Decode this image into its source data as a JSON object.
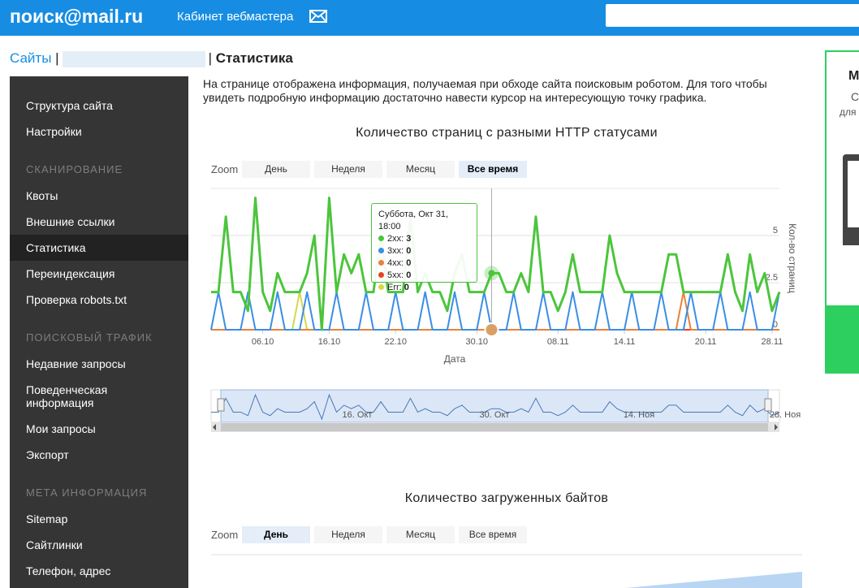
{
  "header": {
    "logo": "поиск@mail.ru",
    "cabinet": "Кабинет вебмастера"
  },
  "breadcrumb": {
    "sites": "Сайты",
    "separator": "|",
    "current": "Статистика"
  },
  "sidebar": {
    "sections": [
      {
        "items": [
          {
            "label": "Структура сайта"
          },
          {
            "label": "Настройки"
          }
        ]
      },
      {
        "heading": "СКАНИРОВАНИЕ",
        "items": [
          {
            "label": "Квоты"
          },
          {
            "label": "Внешние ссылки"
          },
          {
            "label": "Статистика",
            "selected": true
          },
          {
            "label": "Переиндексация"
          },
          {
            "label": "Проверка robots.txt"
          }
        ]
      },
      {
        "heading": "ПОИСКОВЫЙ ТРАФИК",
        "items": [
          {
            "label": "Недавние запросы"
          },
          {
            "label": "Поведенческая информация"
          },
          {
            "label": "Мои запросы"
          },
          {
            "label": "Экспорт"
          }
        ]
      },
      {
        "heading": "МЕТА ИНФОРМАЦИЯ",
        "items": [
          {
            "label": "Sitemap"
          },
          {
            "label": "Сайтлинки"
          },
          {
            "label": "Телефон, адрес"
          }
        ]
      }
    ]
  },
  "intro": "На странице отображена информация, получаемая при обходе сайта поисковым роботом. Для того чтобы увидеть подробную информацию достаточно навести курсор на интересующую точку графика.",
  "chart_data": {
    "type": "line",
    "title": "Количество страниц с разными HTTP статусами",
    "zoom_label": "Zoom",
    "zoom_buttons": [
      "День",
      "Неделя",
      "Месяц",
      "Все время"
    ],
    "zoom_selected": 3,
    "xlabel": "Дата",
    "ylabel": "Кол-во страниц",
    "ylim": [
      0,
      7.5
    ],
    "yticks": [
      0,
      2.5,
      5
    ],
    "grid": true,
    "xlim": [
      0,
      77
    ],
    "xticks": [
      {
        "value": 7,
        "label": "06.10"
      },
      {
        "value": 16,
        "label": "16.10"
      },
      {
        "value": 25,
        "label": "22.10"
      },
      {
        "value": 36,
        "label": "30.10"
      },
      {
        "value": 47,
        "label": "08.11"
      },
      {
        "value": 56,
        "label": "14.11"
      },
      {
        "value": 67,
        "label": "20.11"
      },
      {
        "value": 76,
        "label": "28.11"
      }
    ],
    "tooltip_title": "Суббота, Окт 31, 18:00",
    "navigator_labels": [
      "16. Окт",
      "30. Окт",
      "14. Ноя",
      "28. Ноя"
    ],
    "series": [
      {
        "name": "2xx",
        "color": "#4cc53c",
        "values": [
          2,
          2,
          6,
          2,
          2,
          1,
          7,
          2,
          1,
          3,
          2,
          2,
          2,
          3,
          5,
          0,
          7,
          2,
          4,
          3,
          4,
          2,
          2,
          5,
          2,
          2,
          2,
          6,
          2,
          3,
          2,
          2,
          1,
          3,
          4,
          2,
          2,
          2,
          3,
          3,
          2,
          2,
          3,
          2,
          6,
          2,
          2,
          1,
          2,
          4,
          2,
          2,
          2,
          2,
          5,
          3,
          2,
          2,
          2,
          2,
          2,
          2,
          4,
          4,
          2,
          2,
          2,
          2,
          2,
          2,
          4,
          2,
          1,
          4,
          2,
          3,
          1,
          2
        ]
      },
      {
        "name": "3xx",
        "color": "#3a8ee6",
        "values": [
          0,
          2,
          0,
          0,
          0,
          2,
          0,
          0,
          0,
          2,
          0,
          0,
          0,
          2,
          0,
          0,
          0,
          2,
          0,
          0,
          0,
          2,
          0,
          0,
          0,
          2,
          0,
          0,
          0,
          2,
          0,
          0,
          0,
          2,
          0,
          0,
          0,
          2,
          0,
          0,
          0,
          2,
          0,
          0,
          0,
          2,
          0,
          0,
          0,
          2,
          0,
          0,
          0,
          2,
          0,
          0,
          0,
          2,
          0,
          0,
          0,
          2,
          0,
          0,
          0,
          2,
          0,
          0,
          0,
          2,
          0,
          0,
          0,
          2,
          0,
          0,
          0,
          2
        ]
      },
      {
        "name": "4xx",
        "color": "#e8823a",
        "values": [
          0,
          0,
          0,
          0,
          0,
          0,
          0,
          0,
          0,
          0,
          0,
          0,
          0,
          0,
          0,
          0,
          0,
          0,
          0,
          0,
          0,
          0,
          0,
          0,
          0,
          0,
          0,
          0,
          0,
          0,
          0,
          0,
          0,
          0,
          0,
          0,
          0,
          0,
          0,
          0,
          0,
          0,
          0,
          0,
          0,
          0,
          0,
          0,
          0,
          0,
          0,
          0,
          0,
          0,
          0,
          0,
          0,
          0,
          0,
          0,
          0,
          0,
          0,
          0,
          2,
          0,
          0,
          0,
          0,
          0,
          0,
          0,
          0,
          0,
          0,
          0,
          0,
          0
        ]
      },
      {
        "name": "5xx",
        "color": "#e8431f",
        "values": [
          0,
          0,
          0,
          0,
          0,
          0,
          0,
          0,
          0,
          0,
          0,
          0,
          0,
          0,
          0,
          0,
          0,
          0,
          0,
          0,
          0,
          0,
          0,
          0,
          0,
          0,
          0,
          0,
          0,
          0,
          0,
          0,
          0,
          0,
          0,
          0,
          0,
          0,
          0,
          0,
          0,
          0,
          0,
          0,
          0,
          0,
          0,
          0,
          0,
          0,
          0,
          0,
          0,
          0,
          0,
          0,
          0,
          0,
          0,
          0,
          0,
          0,
          0,
          0,
          0,
          0,
          0,
          0,
          0,
          0,
          0,
          0,
          0,
          0,
          0,
          0,
          0,
          0
        ]
      },
      {
        "name": "Err",
        "color": "#d4d84a",
        "values": [
          0,
          0,
          0,
          0,
          0,
          0,
          0,
          0,
          0,
          0,
          0,
          0,
          2,
          0,
          0,
          0,
          0,
          0,
          0,
          0,
          0,
          0,
          0,
          0,
          0,
          0,
          0,
          0,
          0,
          0,
          0,
          0,
          0,
          0,
          0,
          0,
          0,
          0,
          0,
          0,
          0,
          0,
          0,
          0,
          0,
          0,
          0,
          0,
          0,
          0,
          0,
          0,
          0,
          0,
          0,
          0,
          0,
          0,
          0,
          0,
          0,
          0,
          0,
          0,
          0,
          0,
          0,
          0,
          0,
          0,
          0,
          0,
          0,
          0,
          0,
          0,
          0,
          0
        ]
      }
    ]
  },
  "bytes_chart": {
    "title": "Количество загруженных байтов",
    "zoom_label": "Zoom",
    "zoom_buttons": [
      "День",
      "Неделя",
      "Месяц",
      "Все время"
    ],
    "zoom_selected": 0
  },
  "banner": {
    "line1": "М",
    "line2": "С",
    "line3": "для"
  }
}
